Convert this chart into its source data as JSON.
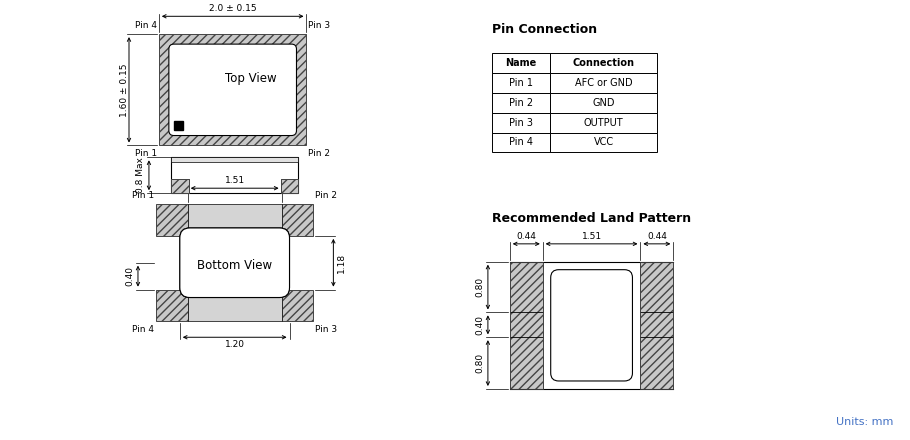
{
  "bg_color": "#ffffff",
  "pin_connection_title": "Pin Connection",
  "table_headers": [
    "Name",
    "Connection"
  ],
  "table_rows": [
    [
      "Pin 1",
      "AFC or GND"
    ],
    [
      "Pin 2",
      "GND"
    ],
    [
      "Pin 3",
      "OUTPUT"
    ],
    [
      "Pin 4",
      "VCC"
    ]
  ],
  "land_pattern_title": "Recommended Land Pattern",
  "units_text": "Units: mm",
  "units_color": "#4472C4"
}
